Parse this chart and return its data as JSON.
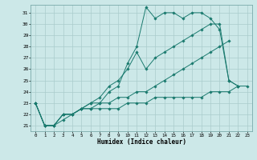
{
  "title": "",
  "xlabel": "Humidex (Indice chaleur)",
  "bg_color": "#cce8e8",
  "grid_color": "#aacccc",
  "line_color": "#1a7a6e",
  "xlim": [
    -0.5,
    23.5
  ],
  "ylim": [
    20.5,
    31.7
  ],
  "xticks": [
    0,
    1,
    2,
    3,
    4,
    5,
    6,
    7,
    8,
    9,
    10,
    11,
    12,
    13,
    14,
    15,
    16,
    17,
    18,
    19,
    20,
    21,
    22,
    23
  ],
  "yticks": [
    21,
    22,
    23,
    24,
    25,
    26,
    27,
    28,
    29,
    30,
    31
  ],
  "series": [
    [
      23.0,
      21.0,
      21.0,
      21.5,
      22.0,
      22.5,
      23.0,
      23.0,
      24.0,
      24.5,
      26.5,
      28.0,
      31.5,
      30.5,
      31.0,
      31.0,
      30.5,
      31.0,
      31.0,
      30.5,
      29.5,
      25.0,
      24.5,
      null
    ],
    [
      23.0,
      21.0,
      21.0,
      22.0,
      22.0,
      22.5,
      23.0,
      23.5,
      24.5,
      25.0,
      26.0,
      27.5,
      26.0,
      27.0,
      27.5,
      28.0,
      28.5,
      29.0,
      29.5,
      30.0,
      30.0,
      25.0,
      24.5,
      null
    ],
    [
      23.0,
      21.0,
      21.0,
      22.0,
      22.0,
      22.5,
      22.5,
      23.0,
      23.0,
      23.5,
      23.5,
      24.0,
      24.0,
      24.5,
      25.0,
      25.5,
      26.0,
      26.5,
      27.0,
      27.5,
      28.0,
      28.5,
      null,
      null
    ],
    [
      23.0,
      21.0,
      21.0,
      22.0,
      22.0,
      22.5,
      22.5,
      22.5,
      22.5,
      22.5,
      23.0,
      23.0,
      23.0,
      23.5,
      23.5,
      23.5,
      23.5,
      23.5,
      23.5,
      24.0,
      24.0,
      24.0,
      24.5,
      24.5
    ]
  ]
}
